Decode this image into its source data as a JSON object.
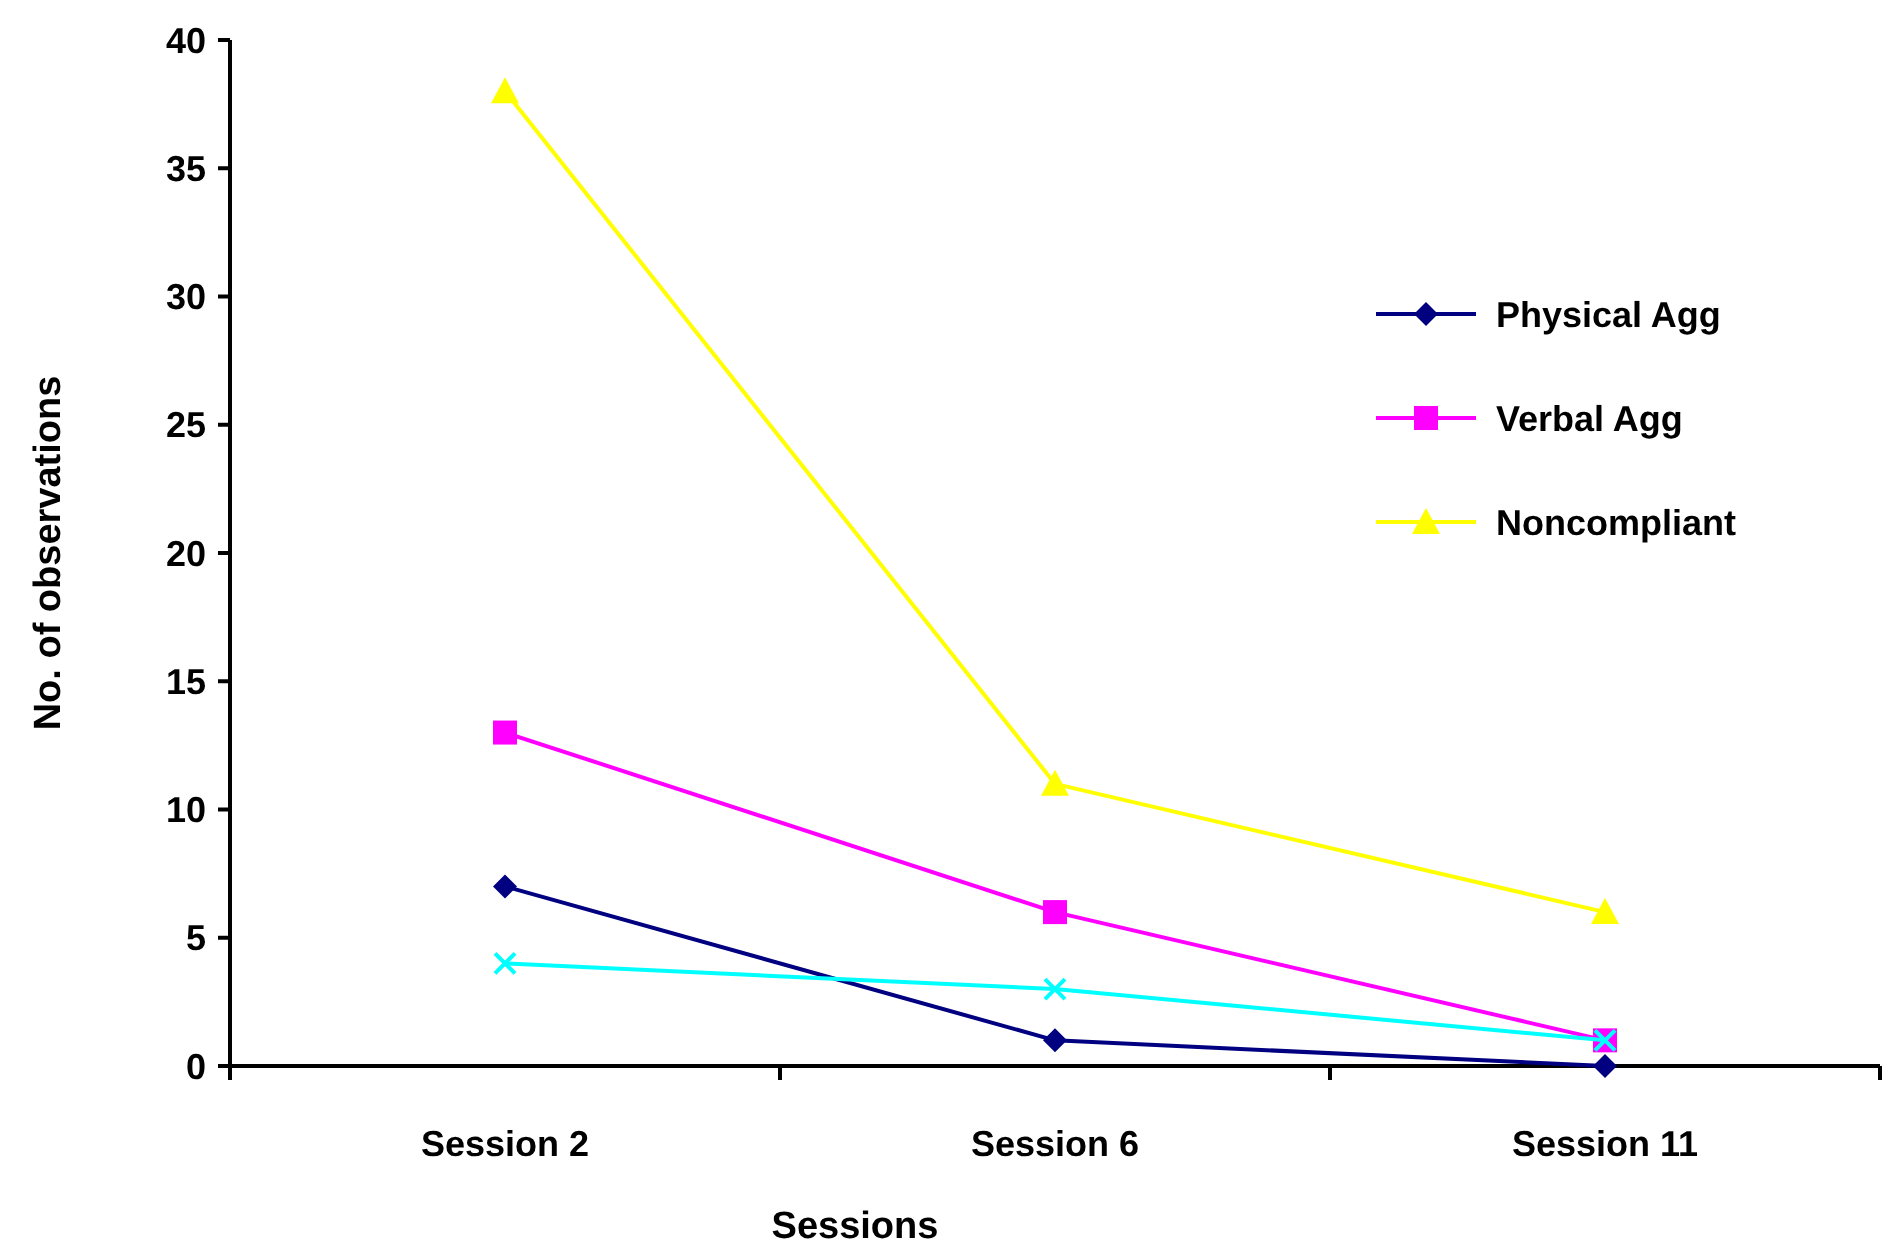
{
  "chart_data": {
    "type": "line",
    "xlabel": "Sessions",
    "ylabel": "No. of observations",
    "categories": [
      "Session 2",
      "Session 6",
      "Session 11"
    ],
    "ylim": [
      0,
      40
    ],
    "yticks": [
      0,
      5,
      10,
      15,
      20,
      25,
      30,
      35,
      40
    ],
    "grid": false,
    "legend": "right",
    "series": [
      {
        "name": "Physical Agg",
        "color": "#000080",
        "marker": "diamond",
        "values": [
          7,
          1,
          0
        ]
      },
      {
        "name": "Verbal Agg",
        "color": "#ff00ff",
        "marker": "square",
        "values": [
          13,
          6,
          1
        ]
      },
      {
        "name": "Noncompliant",
        "color": "#ffff00",
        "marker": "triangle",
        "values": [
          38,
          11,
          6
        ]
      },
      {
        "color": "#00ffff",
        "marker": "cross",
        "values": [
          4,
          3,
          1
        ]
      }
    ]
  }
}
